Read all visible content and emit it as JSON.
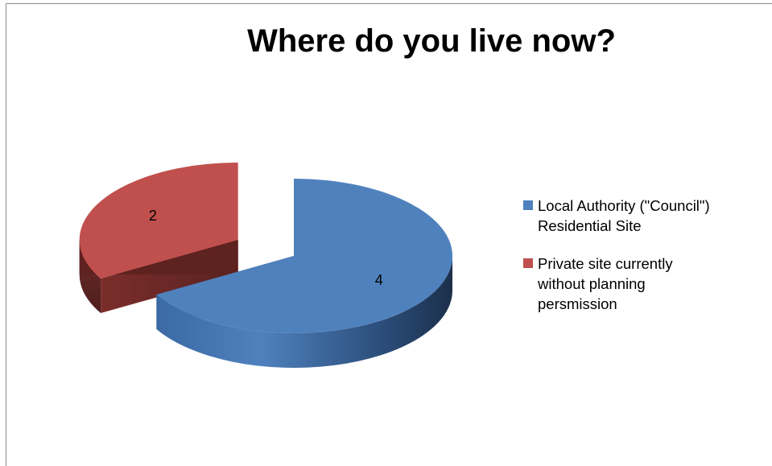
{
  "chart_data": {
    "type": "pie",
    "title": "Where do you live now?",
    "style": "3d-exploded",
    "categories": [
      "Local Authority (\"Council\") Residential Site",
      "Private site currently without planning persmission"
    ],
    "values": [
      4,
      2
    ],
    "colors": [
      "#4f81bd",
      "#c0504d"
    ],
    "data_labels": [
      "4",
      "2"
    ],
    "legend_position": "right"
  },
  "legend": {
    "items": [
      {
        "label": "Local Authority (\"Council\")\nResidential Site",
        "color": "#4f81bd"
      },
      {
        "label": "Private site currently\nwithout planning\npersmission",
        "color": "#c0504d"
      }
    ]
  }
}
